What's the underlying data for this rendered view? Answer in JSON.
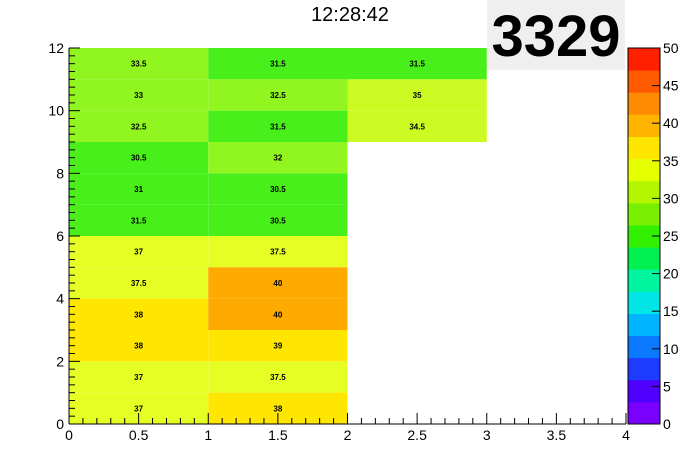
{
  "title": "12:28:42",
  "stat_box": "3329",
  "colors": {
    "palette": [
      "#7a00ff",
      "#5000ff",
      "#1e3cff",
      "#0a78ff",
      "#00b4ff",
      "#00e6e6",
      "#00f5a0",
      "#00f050",
      "#32f000",
      "#78f000",
      "#b4f500",
      "#e6ff00",
      "#ffe600",
      "#ffb400",
      "#ff8c00",
      "#ff5a00",
      "#ff2000"
    ],
    "cell_bins": {
      "30-32": "#48ef1a",
      "32-34": "#91f51f",
      "34-36": "#cbfb22",
      "36-38": "#e5ff25",
      "38-40": "#ffe600",
      "40-42": "#ffaa00"
    }
  },
  "chart_data": {
    "type": "heatmap",
    "xlim": [
      0,
      4
    ],
    "ylim": [
      0,
      12
    ],
    "x_ticks": [
      "0",
      "0.5",
      "1",
      "1.5",
      "2",
      "2.5",
      "3",
      "3.5",
      "4"
    ],
    "y_ticks": [
      "0",
      "2",
      "4",
      "6",
      "8",
      "10",
      "12"
    ],
    "z_range": [
      0,
      50
    ],
    "colorbar_ticks": [
      "0",
      "5",
      "10",
      "15",
      "20",
      "25",
      "30",
      "35",
      "40",
      "45",
      "50"
    ],
    "cells": [
      {
        "x": [
          0,
          1
        ],
        "y": [
          11,
          12
        ],
        "value": "33.5"
      },
      {
        "x": [
          1,
          2
        ],
        "y": [
          11,
          12
        ],
        "value": "31.5"
      },
      {
        "x": [
          2,
          3
        ],
        "y": [
          11,
          12
        ],
        "value": "31.5"
      },
      {
        "x": [
          0,
          1
        ],
        "y": [
          10,
          11
        ],
        "value": "33"
      },
      {
        "x": [
          1,
          2
        ],
        "y": [
          10,
          11
        ],
        "value": "32.5"
      },
      {
        "x": [
          2,
          3
        ],
        "y": [
          10,
          11
        ],
        "value": "35"
      },
      {
        "x": [
          0,
          1
        ],
        "y": [
          9,
          10
        ],
        "value": "32.5"
      },
      {
        "x": [
          1,
          2
        ],
        "y": [
          9,
          10
        ],
        "value": "31.5"
      },
      {
        "x": [
          2,
          3
        ],
        "y": [
          9,
          10
        ],
        "value": "34.5"
      },
      {
        "x": [
          0,
          1
        ],
        "y": [
          8,
          9
        ],
        "value": "30.5"
      },
      {
        "x": [
          1,
          2
        ],
        "y": [
          8,
          9
        ],
        "value": "32"
      },
      {
        "x": [
          0,
          1
        ],
        "y": [
          7,
          8
        ],
        "value": "31"
      },
      {
        "x": [
          1,
          2
        ],
        "y": [
          7,
          8
        ],
        "value": "30.5"
      },
      {
        "x": [
          0,
          1
        ],
        "y": [
          6,
          7
        ],
        "value": "31.5"
      },
      {
        "x": [
          1,
          2
        ],
        "y": [
          6,
          7
        ],
        "value": "30.5"
      },
      {
        "x": [
          0,
          1
        ],
        "y": [
          5,
          6
        ],
        "value": "37"
      },
      {
        "x": [
          1,
          2
        ],
        "y": [
          5,
          6
        ],
        "value": "37.5"
      },
      {
        "x": [
          0,
          1
        ],
        "y": [
          4,
          5
        ],
        "value": "37.5"
      },
      {
        "x": [
          1,
          2
        ],
        "y": [
          4,
          5
        ],
        "value": "40"
      },
      {
        "x": [
          0,
          1
        ],
        "y": [
          3,
          4
        ],
        "value": "38"
      },
      {
        "x": [
          1,
          2
        ],
        "y": [
          3,
          4
        ],
        "value": "40"
      },
      {
        "x": [
          0,
          1
        ],
        "y": [
          2,
          3
        ],
        "value": "38"
      },
      {
        "x": [
          1,
          2
        ],
        "y": [
          2,
          3
        ],
        "value": "39"
      },
      {
        "x": [
          0,
          1
        ],
        "y": [
          1,
          2
        ],
        "value": "37"
      },
      {
        "x": [
          1,
          2
        ],
        "y": [
          1,
          2
        ],
        "value": "37.5"
      },
      {
        "x": [
          0,
          1
        ],
        "y": [
          0,
          1
        ],
        "value": "37"
      },
      {
        "x": [
          1,
          2
        ],
        "y": [
          0,
          1
        ],
        "value": "38"
      }
    ]
  }
}
